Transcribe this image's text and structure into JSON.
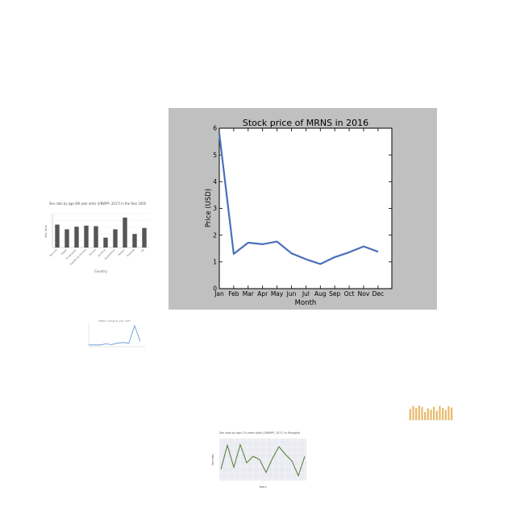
{
  "chart_data": [
    {
      "type": "line",
      "title": "Stock price of MRNS in 2016",
      "xlabel": "Month",
      "ylabel": "Price (USD)",
      "categories": [
        "Jan",
        "Feb",
        "Mar",
        "Apr",
        "May",
        "Jun",
        "Jul",
        "Aug",
        "Sep",
        "Oct",
        "Nov",
        "Dec"
      ],
      "values": [
        5.8,
        1.3,
        1.72,
        1.66,
        1.76,
        1.32,
        1.1,
        0.92,
        1.18,
        1.36,
        1.58,
        1.38
      ],
      "ylim": [
        0,
        6
      ],
      "yticks": [
        "0",
        "1",
        "2",
        "3",
        "4",
        "5",
        "6"
      ],
      "grid": false,
      "colors": {
        "background": "#c0c0c0",
        "plot": "#ffffff",
        "line": "#4a6fba"
      }
    },
    {
      "type": "bar",
      "title": "Sex ratio by age (80 year olds) (UNWPP, 2017) in the Year 2000",
      "xlabel": "Country",
      "ylabel": "Sex ratio",
      "categories": [
        "Burundi",
        "Egypt",
        "El Salvador",
        "Equatorial Guinea",
        "Guinea",
        "Jamaica",
        "Kazakhstan",
        "Malawi",
        "Rwanda",
        "Fiji"
      ],
      "values": [
        88,
        70,
        80,
        84,
        82,
        38,
        70,
        115,
        52,
        75
      ],
      "ylim": [
        0,
        130
      ],
      "colors": {
        "bar": "#555555"
      }
    },
    {
      "type": "line",
      "title": "Inflation change by year, 2017",
      "values": [
        5,
        5,
        5,
        8,
        6,
        10,
        12,
        10,
        60,
        15
      ],
      "colors": {
        "line": "#5a8fd6"
      }
    },
    {
      "type": "bar",
      "values": [
        55,
        70,
        60,
        72,
        65,
        40,
        58,
        52,
        66,
        45,
        70,
        60,
        50,
        68,
        62
      ],
      "colors": {
        "bar": "#e8b96a"
      }
    },
    {
      "type": "line",
      "title": "Sex ratio by age (10 years olds) (UNWPP, 2017) in Mongolia",
      "xlabel": "Years",
      "ylabel": "Sex ratio",
      "values": [
        65,
        102,
        68,
        103,
        75,
        85,
        80,
        60,
        82,
        100,
        88,
        78,
        55,
        85
      ],
      "colors": {
        "line": "#4e7d2e",
        "plot": "#eaeaf2"
      }
    }
  ]
}
